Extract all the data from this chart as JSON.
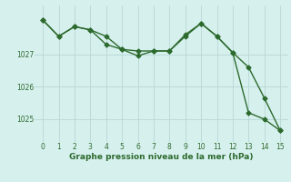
{
  "line1_x": [
    0,
    1,
    2,
    3,
    4,
    5,
    6,
    7,
    8,
    9,
    10,
    11,
    12,
    13,
    14,
    15
  ],
  "line1_y": [
    1028.05,
    1027.55,
    1027.85,
    1027.75,
    1027.55,
    1027.15,
    1026.95,
    1027.1,
    1027.1,
    1027.6,
    1027.95,
    1027.55,
    1027.05,
    1026.6,
    1025.65,
    1024.65
  ],
  "line2_x": [
    0,
    1,
    2,
    3,
    4,
    5,
    6,
    7,
    8,
    9,
    10,
    11,
    12,
    13,
    14,
    15
  ],
  "line2_y": [
    1028.05,
    1027.55,
    1027.85,
    1027.75,
    1027.3,
    1027.15,
    1027.1,
    1027.1,
    1027.1,
    1027.55,
    1027.95,
    1027.55,
    1027.05,
    1025.2,
    1025.0,
    1024.65
  ],
  "line_color": "#2d6a2d",
  "marker": "D",
  "markersize": 2.5,
  "xlabel": "Graphe pression niveau de la mer (hPa)",
  "xlabel_fontsize": 6.5,
  "xticks": [
    0,
    1,
    2,
    3,
    4,
    5,
    6,
    7,
    8,
    9,
    10,
    11,
    12,
    13,
    14,
    15
  ],
  "yticks": [
    1025,
    1026,
    1027
  ],
  "ylim": [
    1024.3,
    1028.5
  ],
  "xlim": [
    -0.5,
    15.5
  ],
  "bg_color": "#d6f0ee",
  "grid_color": "#b8d8d4",
  "tick_fontsize": 5.5,
  "linewidth": 1.0
}
